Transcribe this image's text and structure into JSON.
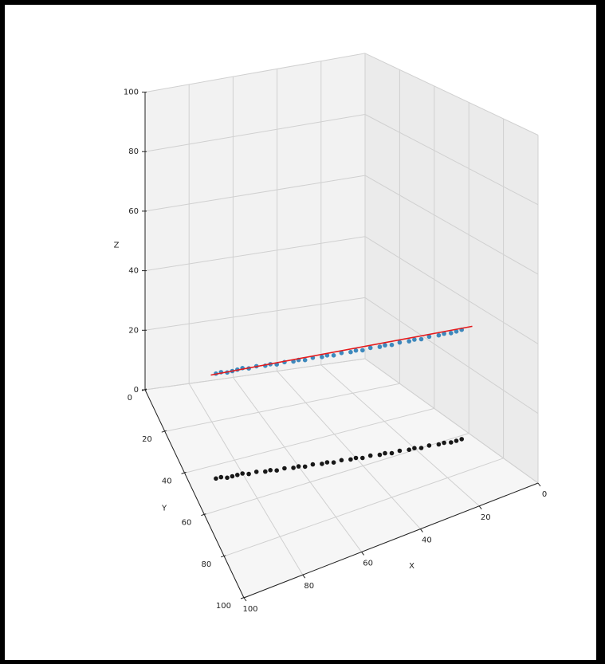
{
  "chart_data": {
    "type": "scatter",
    "subtype": "3d-scatter",
    "title": "",
    "xlabel": "X",
    "ylabel": "Y",
    "zlabel": "Z",
    "xlim": [
      0,
      100
    ],
    "ylim": [
      0,
      100
    ],
    "zlim": [
      0,
      100
    ],
    "grid": true,
    "x_ticks": [
      0,
      20,
      40,
      60,
      80,
      100
    ],
    "y_ticks": [
      0,
      20,
      40,
      60,
      80,
      100
    ],
    "z_ticks": [
      0,
      20,
      40,
      60,
      80,
      100
    ],
    "series": [
      {
        "color": "#1f77b4",
        "marker": "circle",
        "z_value": 33,
        "points": [
          [
            90,
            46,
            33
          ],
          [
            88,
            46,
            33
          ],
          [
            86,
            47,
            33
          ],
          [
            84,
            47,
            33
          ],
          [
            82,
            47,
            33
          ],
          [
            80,
            47,
            33
          ],
          [
            78,
            48,
            33
          ],
          [
            75,
            48,
            33
          ],
          [
            72,
            49,
            33
          ],
          [
            70,
            49,
            33
          ],
          [
            68,
            50,
            33
          ],
          [
            65,
            50,
            33
          ],
          [
            62,
            51,
            33
          ],
          [
            60,
            51,
            33
          ],
          [
            58,
            52,
            33
          ],
          [
            55,
            52,
            33
          ],
          [
            52,
            53,
            33
          ],
          [
            50,
            53,
            33
          ],
          [
            48,
            54,
            33
          ],
          [
            45,
            54,
            33
          ],
          [
            42,
            55,
            33
          ],
          [
            40,
            55,
            33
          ],
          [
            38,
            56,
            33
          ],
          [
            35,
            56,
            33
          ],
          [
            32,
            57,
            33
          ],
          [
            30,
            57,
            33
          ],
          [
            28,
            58,
            33
          ],
          [
            25,
            58,
            33
          ],
          [
            22,
            59,
            33
          ],
          [
            20,
            59,
            33
          ],
          [
            18,
            60,
            33
          ],
          [
            15,
            60,
            33
          ],
          [
            12,
            61,
            33
          ],
          [
            10,
            61,
            33
          ],
          [
            8,
            62,
            33
          ],
          [
            6,
            62,
            33
          ],
          [
            4,
            62,
            33
          ]
        ]
      },
      {
        "color": "#000000",
        "marker": "circle",
        "z_value": 0,
        "points": [
          [
            90,
            46,
            0
          ],
          [
            88,
            46,
            0
          ],
          [
            86,
            47,
            0
          ],
          [
            84,
            47,
            0
          ],
          [
            82,
            47,
            0
          ],
          [
            80,
            47,
            0
          ],
          [
            78,
            48,
            0
          ],
          [
            75,
            48,
            0
          ],
          [
            72,
            49,
            0
          ],
          [
            70,
            49,
            0
          ],
          [
            68,
            50,
            0
          ],
          [
            65,
            50,
            0
          ],
          [
            62,
            51,
            0
          ],
          [
            60,
            51,
            0
          ],
          [
            58,
            52,
            0
          ],
          [
            55,
            52,
            0
          ],
          [
            52,
            53,
            0
          ],
          [
            50,
            53,
            0
          ],
          [
            48,
            54,
            0
          ],
          [
            45,
            54,
            0
          ],
          [
            42,
            55,
            0
          ],
          [
            40,
            55,
            0
          ],
          [
            38,
            56,
            0
          ],
          [
            35,
            56,
            0
          ],
          [
            32,
            57,
            0
          ],
          [
            30,
            57,
            0
          ],
          [
            28,
            58,
            0
          ],
          [
            25,
            58,
            0
          ],
          [
            22,
            59,
            0
          ],
          [
            20,
            59,
            0
          ],
          [
            18,
            60,
            0
          ],
          [
            15,
            60,
            0
          ],
          [
            12,
            61,
            0
          ],
          [
            10,
            61,
            0
          ],
          [
            8,
            62,
            0
          ],
          [
            6,
            62,
            0
          ],
          [
            4,
            62,
            0
          ]
        ]
      }
    ],
    "fit_line": {
      "color": "#e41a1c",
      "points": [
        [
          92,
          46,
          33
        ],
        [
          0,
          62,
          33
        ]
      ]
    }
  }
}
